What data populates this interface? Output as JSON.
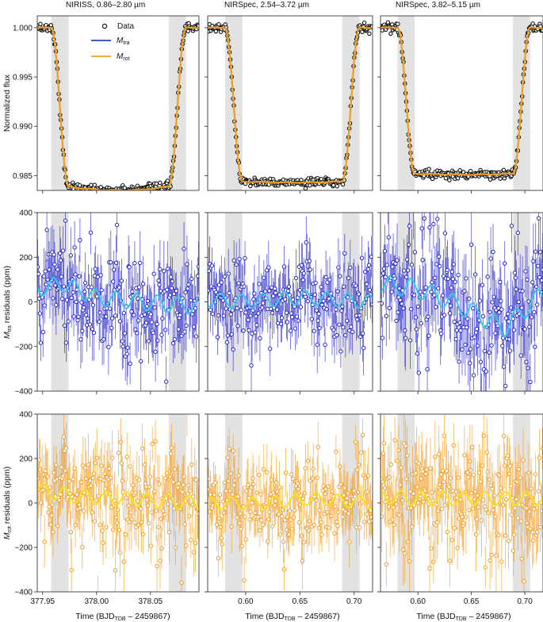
{
  "figure": {
    "column_titles": [
      "NIRISS, 0.86–2.80 µm",
      "NIRSpec, 2.54–3.72 µm",
      "NIRSpec, 3.82–5.15 µm"
    ],
    "legend": {
      "data_label": "Data",
      "m_tra_label_main": "M",
      "m_tra_label_sub": "tra",
      "m_rot_label_main": "M",
      "m_rot_label_sub": "rot"
    },
    "ylabels": {
      "row1": "Normalized flux",
      "row2_main": "M",
      "row2_sub": "tra",
      "row2_rest": " residuals (ppm)",
      "row3_main": "M",
      "row3_sub": "rot",
      "row3_rest": " residuals (ppm)"
    },
    "xlabel": {
      "main": "Time (BJD",
      "sub": "TDB",
      "rest": " – 2459867)"
    },
    "colors": {
      "data_edge": "#111111",
      "m_tra": "#2b3fc9",
      "m_rot": "#f0a020",
      "tra_resid": "#2222cc",
      "tra_smooth": "#35c8f0",
      "rot_resid": "#f39a1e",
      "rot_smooth": "#f8e41c",
      "shade": "#e2e2e2"
    }
  },
  "chart_data": [
    {
      "type": "scatter",
      "panel": "row1-col1",
      "ylabel": "Normalized flux",
      "ylim": [
        0.9835,
        1.0012
      ],
      "yticks": [
        0.985,
        0.99,
        0.995,
        1.0
      ],
      "ytick_labels": [
        "0.985",
        "0.990",
        "0.995",
        "1.000"
      ],
      "xlim": [
        377.945,
        378.095
      ],
      "xticks": [
        377.95,
        378.0,
        378.05
      ],
      "shaded": [
        [
          377.958,
          377.974
        ],
        [
          378.067,
          378.083
        ]
      ],
      "transit": {
        "t1": 377.958,
        "t2": 377.974,
        "t3": 378.067,
        "t4": 378.083,
        "depth": 0.0161,
        "limb": 0.0004
      },
      "noise": 0.00022,
      "series": [
        {
          "name": "Data"
        },
        {
          "name": "Mtra"
        },
        {
          "name": "Mrot"
        }
      ]
    },
    {
      "type": "scatter",
      "panel": "row1-col2",
      "ylim": [
        0.9835,
        1.0012
      ],
      "yticks": [
        0.985,
        0.99,
        0.995,
        1.0
      ],
      "xlim": [
        0.565,
        0.717
      ],
      "xticks": [
        0.6,
        0.65,
        0.7
      ],
      "shaded": [
        [
          0.581,
          0.597
        ],
        [
          0.689,
          0.705
        ]
      ],
      "transit": {
        "t1": 0.581,
        "t2": 0.597,
        "t3": 0.689,
        "t4": 0.705,
        "depth": 0.0156,
        "limb": 0.0001
      },
      "noise": 0.00022
    },
    {
      "type": "scatter",
      "panel": "row1-col3",
      "ylim": [
        0.9835,
        1.0012
      ],
      "yticks": [
        0.985,
        0.99,
        0.995,
        1.0
      ],
      "xlim": [
        0.565,
        0.717
      ],
      "xticks": [
        0.6,
        0.65,
        0.7
      ],
      "shaded": [
        [
          0.581,
          0.597
        ],
        [
          0.689,
          0.705
        ]
      ],
      "transit": {
        "t1": 0.581,
        "t2": 0.597,
        "t3": 0.689,
        "t4": 0.705,
        "depth": 0.0148,
        "limb": 0.0001
      },
      "noise": 0.00022
    },
    {
      "type": "scatter",
      "panel": "row2-col1",
      "ylim": [
        -400,
        400
      ],
      "yticks": [
        -400,
        -200,
        0,
        200,
        400
      ],
      "ytick_labels": [
        "−400",
        "−200",
        "0",
        "200",
        "400"
      ],
      "xlim": [
        377.945,
        378.095
      ],
      "xticks": [
        377.95,
        378.0,
        378.05
      ],
      "shaded": [
        [
          377.958,
          377.974
        ],
        [
          378.067,
          378.083
        ]
      ],
      "residuals": {
        "scatter": 120,
        "error": 110,
        "trend": [
          [
            377.945,
            60
          ],
          [
            377.97,
            80
          ],
          [
            378.0,
            20
          ],
          [
            378.04,
            0
          ],
          [
            378.095,
            -20
          ]
        ],
        "wiggle": 40
      }
    },
    {
      "type": "scatter",
      "panel": "row2-col2",
      "ylim": [
        -400,
        400
      ],
      "yticks": [
        -400,
        -200,
        0,
        200,
        400
      ],
      "xlim": [
        0.565,
        0.717
      ],
      "xticks": [
        0.6,
        0.65,
        0.7
      ],
      "shaded": [
        [
          0.581,
          0.597
        ],
        [
          0.689,
          0.705
        ]
      ],
      "residuals": {
        "scatter": 100,
        "error": 100,
        "trend": [
          [
            0.565,
            10
          ],
          [
            0.6,
            0
          ],
          [
            0.65,
            20
          ],
          [
            0.717,
            0
          ]
        ],
        "wiggle": 35
      }
    },
    {
      "type": "scatter",
      "panel": "row2-col3",
      "ylim": [
        -400,
        400
      ],
      "yticks": [
        -400,
        -200,
        0,
        200,
        400
      ],
      "xlim": [
        0.565,
        0.717
      ],
      "xticks": [
        0.6,
        0.65,
        0.7
      ],
      "shaded": [
        [
          0.581,
          0.597
        ],
        [
          0.689,
          0.705
        ]
      ],
      "residuals": {
        "scatter": 140,
        "error": 130,
        "trend": [
          [
            0.565,
            80
          ],
          [
            0.6,
            60
          ],
          [
            0.65,
            -40
          ],
          [
            0.68,
            -120
          ],
          [
            0.717,
            40
          ]
        ],
        "wiggle": 45
      }
    },
    {
      "type": "scatter",
      "panel": "row3-col1",
      "ylim": [
        -400,
        400
      ],
      "yticks": [
        -400,
        -200,
        0,
        200,
        400
      ],
      "ytick_labels": [
        "−400",
        "−200",
        "0",
        "200",
        "400"
      ],
      "xlim": [
        377.945,
        378.095
      ],
      "xticks": [
        377.95,
        378.0,
        378.05
      ],
      "xtick_labels": [
        "377.95",
        "378.00",
        "378.05"
      ],
      "shaded": [
        [
          377.958,
          377.974
        ],
        [
          378.067,
          378.083
        ]
      ],
      "residuals": {
        "scatter": 120,
        "error": 110,
        "trend": [
          [
            377.945,
            60
          ],
          [
            377.98,
            30
          ],
          [
            378.02,
            20
          ],
          [
            378.095,
            0
          ]
        ],
        "wiggle": 35
      }
    },
    {
      "type": "scatter",
      "panel": "row3-col2",
      "ylim": [
        -400,
        400
      ],
      "yticks": [
        -400,
        -200,
        0,
        200,
        400
      ],
      "xlim": [
        0.565,
        0.717
      ],
      "xticks": [
        0.6,
        0.65,
        0.7
      ],
      "xtick_labels": [
        "0.60",
        "0.65",
        "0.70"
      ],
      "shaded": [
        [
          0.581,
          0.597
        ],
        [
          0.689,
          0.705
        ]
      ],
      "residuals": {
        "scatter": 100,
        "error": 100,
        "trend": [
          [
            0.565,
            0
          ],
          [
            0.62,
            0
          ],
          [
            0.66,
            20
          ],
          [
            0.717,
            0
          ]
        ],
        "wiggle": 30
      }
    },
    {
      "type": "scatter",
      "panel": "row3-col3",
      "ylim": [
        -400,
        400
      ],
      "yticks": [
        -400,
        -200,
        0,
        200,
        400
      ],
      "xlim": [
        0.565,
        0.717
      ],
      "xticks": [
        0.6,
        0.65,
        0.7
      ],
      "xtick_labels": [
        "0.60",
        "0.65",
        "0.70"
      ],
      "shaded": [
        [
          0.581,
          0.597
        ],
        [
          0.689,
          0.705
        ]
      ],
      "residuals": {
        "scatter": 130,
        "error": 130,
        "trend": [
          [
            0.565,
            30
          ],
          [
            0.6,
            20
          ],
          [
            0.65,
            20
          ],
          [
            0.717,
            20
          ]
        ],
        "wiggle": 35
      }
    }
  ]
}
